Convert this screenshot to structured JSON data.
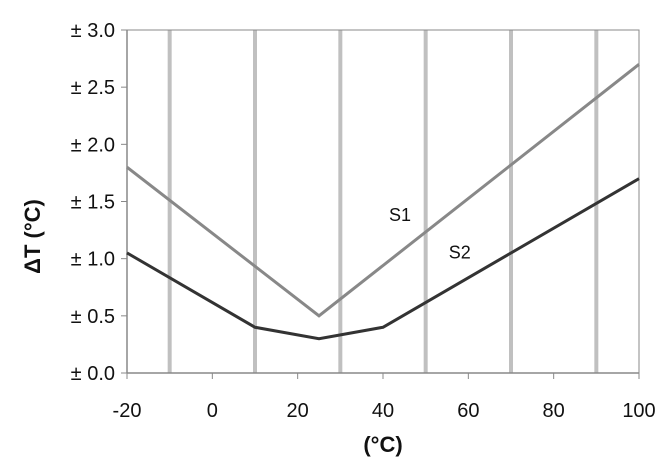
{
  "chart_data": {
    "type": "line",
    "title": "",
    "xlabel": "(°C)",
    "ylabel": "ΔT (°C)",
    "xlim": [
      -20,
      100
    ],
    "ylim": [
      0,
      3
    ],
    "x_ticks": [
      -20,
      0,
      20,
      40,
      60,
      80,
      100
    ],
    "x_tick_labels": [
      "-20",
      "0",
      "20",
      "40",
      "60",
      "80",
      "100"
    ],
    "y_ticks": [
      0,
      0.5,
      1,
      1.5,
      2,
      2.5,
      3
    ],
    "y_tick_labels": [
      "± 0.0",
      "± 0.5",
      "± 1.0",
      "± 1.5",
      "± 2.0",
      "± 2.5",
      "± 3.0"
    ],
    "vertical_gridlines_at": [
      -10,
      10,
      30,
      50,
      70,
      90
    ],
    "grid": true,
    "legend": "none",
    "series": [
      {
        "name": "S1",
        "color": "#888888",
        "x": [
          -20,
          25,
          100
        ],
        "y": [
          1.8,
          0.5,
          2.7
        ]
      },
      {
        "name": "S2",
        "color": "#333333",
        "x": [
          -20,
          10,
          25,
          40,
          100
        ],
        "y": [
          1.05,
          0.4,
          0.3,
          0.4,
          1.7
        ]
      }
    ],
    "annotations": [
      {
        "text": "S1",
        "x": 44,
        "y": 1.33
      },
      {
        "text": "S2",
        "x": 58,
        "y": 1.0
      }
    ]
  }
}
